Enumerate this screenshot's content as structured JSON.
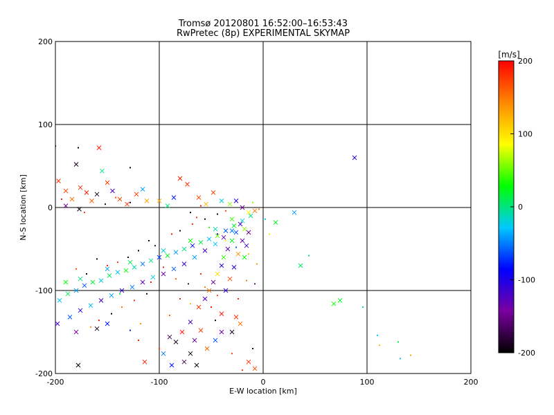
{
  "chart_data": {
    "type": "scatter",
    "title": "Tromsø 20120801 16:52:00–16:53:43",
    "subtitle": "RwPretec (8p) EXPERIMENTAL SKYMAP",
    "xlabel": "E-W location [km]",
    "ylabel": "N-S location [km]",
    "xlim": [
      -200,
      200
    ],
    "ylim": [
      -200,
      200
    ],
    "xticks": [
      "-200",
      "-100",
      "0",
      "100",
      "200"
    ],
    "yticks": [
      "-200",
      "-100",
      "0",
      "100",
      "200"
    ],
    "grid": true,
    "colorbar": {
      "label": "[m/s]",
      "range": [
        -200,
        200
      ],
      "ticks": [
        "-200",
        "-100",
        "0",
        "100",
        "200"
      ],
      "colormap": [
        "#000000",
        "#7a00a0",
        "#0000ff",
        "#00c8ff",
        "#00ff00",
        "#ffff00",
        "#ff8800",
        "#ff0000"
      ]
    },
    "points": [
      {
        "x": -197,
        "y": 32,
        "v": 180,
        "m": "x"
      },
      {
        "x": -190,
        "y": 20,
        "v": 170,
        "m": "x"
      },
      {
        "x": -184,
        "y": 10,
        "v": 150,
        "m": "x"
      },
      {
        "x": -176,
        "y": 24,
        "v": 180,
        "m": "x"
      },
      {
        "x": -170,
        "y": 18,
        "v": 190,
        "m": "x"
      },
      {
        "x": -165,
        "y": 8,
        "v": 160,
        "m": "x"
      },
      {
        "x": -158,
        "y": 72,
        "v": 190,
        "m": "x"
      },
      {
        "x": -155,
        "y": 44,
        "v": 0,
        "m": "x"
      },
      {
        "x": -150,
        "y": 30,
        "v": 180,
        "m": "x"
      },
      {
        "x": -145,
        "y": 20,
        "v": -120,
        "m": "x"
      },
      {
        "x": -138,
        "y": 10,
        "v": 170,
        "m": "x"
      },
      {
        "x": -131,
        "y": 4,
        "v": 180,
        "m": "x"
      },
      {
        "x": -122,
        "y": 16,
        "v": 180,
        "m": "x"
      },
      {
        "x": -116,
        "y": 22,
        "v": -40,
        "m": "x"
      },
      {
        "x": -112,
        "y": 8,
        "v": 130,
        "m": "x"
      },
      {
        "x": -180,
        "y": 52,
        "v": -190,
        "m": "x"
      },
      {
        "x": -190,
        "y": 2,
        "v": -150,
        "m": "x"
      },
      {
        "x": -177,
        "y": -2,
        "v": -200,
        "m": "x"
      },
      {
        "x": -160,
        "y": 16,
        "v": -190,
        "m": "x"
      },
      {
        "x": -80,
        "y": 35,
        "v": 190,
        "m": "x"
      },
      {
        "x": -73,
        "y": 28,
        "v": 180,
        "m": "x"
      },
      {
        "x": -62,
        "y": 12,
        "v": 170,
        "m": "x"
      },
      {
        "x": -55,
        "y": 4,
        "v": 120,
        "m": "x"
      },
      {
        "x": -48,
        "y": 18,
        "v": 170,
        "m": "x"
      },
      {
        "x": -40,
        "y": 8,
        "v": -20,
        "m": "x"
      },
      {
        "x": -32,
        "y": 4,
        "v": 60,
        "m": "x"
      },
      {
        "x": -26,
        "y": 8,
        "v": -100,
        "m": "x"
      },
      {
        "x": -20,
        "y": 0,
        "v": -150,
        "m": "x"
      },
      {
        "x": -14,
        "y": -6,
        "v": 90,
        "m": "x"
      },
      {
        "x": -8,
        "y": -4,
        "v": 150,
        "m": "x"
      },
      {
        "x": -92,
        "y": 2,
        "v": 0,
        "m": "x"
      },
      {
        "x": -86,
        "y": 12,
        "v": -80,
        "m": "x"
      },
      {
        "x": -100,
        "y": 8,
        "v": 120,
        "m": "x"
      },
      {
        "x": -196,
        "y": -112,
        "v": -30,
        "m": "x"
      },
      {
        "x": -188,
        "y": -104,
        "v": 10,
        "m": "x"
      },
      {
        "x": -180,
        "y": -100,
        "v": -40,
        "m": "x"
      },
      {
        "x": -172,
        "y": -94,
        "v": -60,
        "m": "x"
      },
      {
        "x": -164,
        "y": -90,
        "v": 20,
        "m": "x"
      },
      {
        "x": -156,
        "y": -88,
        "v": -20,
        "m": "x"
      },
      {
        "x": -148,
        "y": -82,
        "v": 10,
        "m": "x"
      },
      {
        "x": -140,
        "y": -78,
        "v": -30,
        "m": "x"
      },
      {
        "x": -132,
        "y": -76,
        "v": 30,
        "m": "x"
      },
      {
        "x": -124,
        "y": -72,
        "v": -10,
        "m": "x"
      },
      {
        "x": -116,
        "y": -68,
        "v": -50,
        "m": "x"
      },
      {
        "x": -108,
        "y": -64,
        "v": 0,
        "m": "x"
      },
      {
        "x": -100,
        "y": -60,
        "v": -70,
        "m": "x"
      },
      {
        "x": -92,
        "y": -58,
        "v": 20,
        "m": "x"
      },
      {
        "x": -84,
        "y": -54,
        "v": -40,
        "m": "x"
      },
      {
        "x": -76,
        "y": -50,
        "v": 0,
        "m": "x"
      },
      {
        "x": -68,
        "y": -46,
        "v": -80,
        "m": "x"
      },
      {
        "x": -60,
        "y": -42,
        "v": 10,
        "m": "x"
      },
      {
        "x": -52,
        "y": -38,
        "v": -30,
        "m": "x"
      },
      {
        "x": -44,
        "y": -34,
        "v": 50,
        "m": "x"
      },
      {
        "x": -36,
        "y": -28,
        "v": -60,
        "m": "x"
      },
      {
        "x": -28,
        "y": -22,
        "v": 20,
        "m": "x"
      },
      {
        "x": -20,
        "y": -16,
        "v": -20,
        "m": "x"
      },
      {
        "x": -12,
        "y": -10,
        "v": 0,
        "m": "x"
      },
      {
        "x": -190,
        "y": -90,
        "v": 30,
        "m": "x"
      },
      {
        "x": -176,
        "y": -86,
        "v": 0,
        "m": "x"
      },
      {
        "x": -150,
        "y": -74,
        "v": -40,
        "m": "x"
      },
      {
        "x": -128,
        "y": -66,
        "v": 10,
        "m": "x"
      },
      {
        "x": -96,
        "y": -52,
        "v": -20,
        "m": "x"
      },
      {
        "x": -70,
        "y": -40,
        "v": 30,
        "m": "x"
      },
      {
        "x": -46,
        "y": -26,
        "v": -10,
        "m": "x"
      },
      {
        "x": -30,
        "y": -14,
        "v": 40,
        "m": "x"
      },
      {
        "x": -198,
        "y": -140,
        "v": -120,
        "m": "x"
      },
      {
        "x": -186,
        "y": -132,
        "v": -60,
        "m": "x"
      },
      {
        "x": -176,
        "y": -124,
        "v": -100,
        "m": "x"
      },
      {
        "x": -166,
        "y": -118,
        "v": -30,
        "m": "x"
      },
      {
        "x": -156,
        "y": -112,
        "v": -120,
        "m": "x"
      },
      {
        "x": -146,
        "y": -106,
        "v": -40,
        "m": "x"
      },
      {
        "x": -136,
        "y": -100,
        "v": -110,
        "m": "x"
      },
      {
        "x": -126,
        "y": -96,
        "v": -50,
        "m": "x"
      },
      {
        "x": -116,
        "y": -90,
        "v": -130,
        "m": "x"
      },
      {
        "x": -106,
        "y": -84,
        "v": -20,
        "m": "x"
      },
      {
        "x": -96,
        "y": -80,
        "v": -140,
        "m": "x"
      },
      {
        "x": -86,
        "y": -74,
        "v": -60,
        "m": "x"
      },
      {
        "x": -76,
        "y": -68,
        "v": -110,
        "m": "x"
      },
      {
        "x": -66,
        "y": -60,
        "v": -40,
        "m": "x"
      },
      {
        "x": -56,
        "y": -52,
        "v": -120,
        "m": "x"
      },
      {
        "x": -46,
        "y": -44,
        "v": -30,
        "m": "x"
      },
      {
        "x": -38,
        "y": -36,
        "v": -130,
        "m": "x"
      },
      {
        "x": -30,
        "y": -28,
        "v": -50,
        "m": "x"
      },
      {
        "x": -180,
        "y": -150,
        "v": -140,
        "m": "x"
      },
      {
        "x": -160,
        "y": -146,
        "v": -190,
        "m": "x"
      },
      {
        "x": -150,
        "y": -140,
        "v": -80,
        "m": "x"
      },
      {
        "x": -22,
        "y": -20,
        "v": -120,
        "m": "x"
      },
      {
        "x": -26,
        "y": -30,
        "v": -60,
        "m": "x"
      },
      {
        "x": -30,
        "y": -40,
        "v": 20,
        "m": "x"
      },
      {
        "x": -34,
        "y": -50,
        "v": -130,
        "m": "x"
      },
      {
        "x": -38,
        "y": -60,
        "v": 40,
        "m": "x"
      },
      {
        "x": -40,
        "y": -70,
        "v": -110,
        "m": "x"
      },
      {
        "x": -44,
        "y": -80,
        "v": 100,
        "m": "x"
      },
      {
        "x": -48,
        "y": -90,
        "v": -140,
        "m": "x"
      },
      {
        "x": -52,
        "y": -100,
        "v": 150,
        "m": "x"
      },
      {
        "x": -56,
        "y": -110,
        "v": -120,
        "m": "x"
      },
      {
        "x": -18,
        "y": -26,
        "v": 60,
        "m": "x"
      },
      {
        "x": -20,
        "y": -40,
        "v": -130,
        "m": "x"
      },
      {
        "x": -24,
        "y": -56,
        "v": 140,
        "m": "x"
      },
      {
        "x": -28,
        "y": -72,
        "v": -100,
        "m": "x"
      },
      {
        "x": -32,
        "y": -86,
        "v": 170,
        "m": "x"
      },
      {
        "x": -36,
        "y": -100,
        "v": -110,
        "m": "x"
      },
      {
        "x": -14,
        "y": -30,
        "v": -150,
        "m": "x"
      },
      {
        "x": -16,
        "y": -46,
        "v": -120,
        "m": "x"
      },
      {
        "x": -18,
        "y": -60,
        "v": 30,
        "m": "x"
      },
      {
        "x": -62,
        "y": -120,
        "v": 180,
        "m": "x"
      },
      {
        "x": -70,
        "y": -138,
        "v": -120,
        "m": "x"
      },
      {
        "x": -78,
        "y": -150,
        "v": 190,
        "m": "x"
      },
      {
        "x": -84,
        "y": -162,
        "v": -190,
        "m": "x"
      },
      {
        "x": -60,
        "y": -148,
        "v": 170,
        "m": "x"
      },
      {
        "x": -66,
        "y": -160,
        "v": -150,
        "m": "x"
      },
      {
        "x": -70,
        "y": -176,
        "v": -190,
        "m": "x"
      },
      {
        "x": -76,
        "y": -186,
        "v": -170,
        "m": "x"
      },
      {
        "x": -64,
        "y": -190,
        "v": -190,
        "m": "x"
      },
      {
        "x": -54,
        "y": -170,
        "v": 160,
        "m": "x"
      },
      {
        "x": -46,
        "y": -160,
        "v": -60,
        "m": "x"
      },
      {
        "x": -40,
        "y": -150,
        "v": -130,
        "m": "x"
      },
      {
        "x": -26,
        "y": -132,
        "v": 180,
        "m": "x"
      },
      {
        "x": -22,
        "y": -140,
        "v": 150,
        "m": "x"
      },
      {
        "x": -30,
        "y": -150,
        "v": -190,
        "m": "x"
      },
      {
        "x": -40,
        "y": -128,
        "v": 190,
        "m": "x"
      },
      {
        "x": -90,
        "y": -156,
        "v": -170,
        "m": "x"
      },
      {
        "x": -96,
        "y": -176,
        "v": -50,
        "m": "x"
      },
      {
        "x": -88,
        "y": -190,
        "v": -80,
        "m": "x"
      },
      {
        "x": -14,
        "y": -186,
        "v": 180,
        "m": "x"
      },
      {
        "x": -8,
        "y": -194,
        "v": 170,
        "m": "x"
      },
      {
        "x": -114,
        "y": -186,
        "v": 190,
        "m": "x"
      },
      {
        "x": -178,
        "y": -190,
        "v": -200,
        "m": "x"
      },
      {
        "x": 88,
        "y": 60,
        "v": -110,
        "m": "x"
      },
      {
        "x": 12,
        "y": -18,
        "v": 20,
        "m": "x"
      },
      {
        "x": 36,
        "y": -70,
        "v": 10,
        "m": "x"
      },
      {
        "x": 68,
        "y": -116,
        "v": 30,
        "m": "x"
      },
      {
        "x": 74,
        "y": -112,
        "v": 20,
        "m": "x"
      },
      {
        "x": 30,
        "y": -6,
        "v": -40,
        "m": "x"
      },
      {
        "x": -60,
        "y": 2,
        "v": 190,
        "m": "."
      },
      {
        "x": -10,
        "y": 6,
        "v": 60,
        "m": "."
      },
      {
        "x": -4,
        "y": -2,
        "v": 150,
        "m": "."
      },
      {
        "x": -110,
        "y": -40,
        "v": -200,
        "m": "."
      },
      {
        "x": -104,
        "y": -46,
        "v": -180,
        "m": "."
      },
      {
        "x": -120,
        "y": -52,
        "v": -200,
        "m": "."
      },
      {
        "x": -130,
        "y": -60,
        "v": -190,
        "m": "."
      },
      {
        "x": -140,
        "y": -66,
        "v": 180,
        "m": "."
      },
      {
        "x": -150,
        "y": -70,
        "v": 190,
        "m": "."
      },
      {
        "x": -160,
        "y": -62,
        "v": -190,
        "m": "."
      },
      {
        "x": -170,
        "y": -80,
        "v": -200,
        "m": "."
      },
      {
        "x": -180,
        "y": -74,
        "v": 170,
        "m": "."
      },
      {
        "x": -88,
        "y": -32,
        "v": 190,
        "m": "."
      },
      {
        "x": -80,
        "y": -28,
        "v": -200,
        "m": "."
      },
      {
        "x": -68,
        "y": -20,
        "v": 180,
        "m": "."
      },
      {
        "x": -56,
        "y": -14,
        "v": -190,
        "m": "."
      },
      {
        "x": -44,
        "y": -8,
        "v": -190,
        "m": "."
      },
      {
        "x": -36,
        "y": -4,
        "v": 170,
        "m": "."
      },
      {
        "x": -96,
        "y": -72,
        "v": 190,
        "m": "."
      },
      {
        "x": -84,
        "y": -86,
        "v": 160,
        "m": "."
      },
      {
        "x": -72,
        "y": -92,
        "v": -170,
        "m": "."
      },
      {
        "x": -60,
        "y": -80,
        "v": 180,
        "m": "."
      },
      {
        "x": -108,
        "y": -90,
        "v": 190,
        "m": "."
      },
      {
        "x": -112,
        "y": -104,
        "v": -190,
        "m": "."
      },
      {
        "x": -124,
        "y": -112,
        "v": 180,
        "m": "."
      },
      {
        "x": -136,
        "y": -120,
        "v": 150,
        "m": "."
      },
      {
        "x": -146,
        "y": -128,
        "v": -200,
        "m": "."
      },
      {
        "x": -158,
        "y": -136,
        "v": 190,
        "m": "."
      },
      {
        "x": -166,
        "y": -144,
        "v": 140,
        "m": "."
      },
      {
        "x": -120,
        "y": -160,
        "v": 190,
        "m": "."
      },
      {
        "x": -100,
        "y": -170,
        "v": 180,
        "m": "."
      },
      {
        "x": -90,
        "y": -130,
        "v": 160,
        "m": "."
      },
      {
        "x": -50,
        "y": -120,
        "v": 190,
        "m": "."
      },
      {
        "x": -46,
        "y": -136,
        "v": -200,
        "m": "."
      },
      {
        "x": -30,
        "y": -176,
        "v": 170,
        "m": "."
      },
      {
        "x": -20,
        "y": -196,
        "v": 180,
        "m": "."
      },
      {
        "x": -10,
        "y": -170,
        "v": -190,
        "m": "."
      },
      {
        "x": -24,
        "y": -110,
        "v": 190,
        "m": "."
      },
      {
        "x": -200,
        "y": 74,
        "v": -200,
        "m": "."
      },
      {
        "x": -178,
        "y": 72,
        "v": -200,
        "m": "."
      },
      {
        "x": -128,
        "y": 48,
        "v": -200,
        "m": "."
      },
      {
        "x": -194,
        "y": 10,
        "v": 190,
        "m": "."
      },
      {
        "x": -172,
        "y": -6,
        "v": 180,
        "m": "."
      },
      {
        "x": -152,
        "y": 4,
        "v": -200,
        "m": "."
      },
      {
        "x": -142,
        "y": 12,
        "v": 170,
        "m": "."
      },
      {
        "x": -128,
        "y": 6,
        "v": -190,
        "m": "."
      },
      {
        "x": -70,
        "y": -6,
        "v": -200,
        "m": "."
      },
      {
        "x": -64,
        "y": -12,
        "v": 180,
        "m": "."
      },
      {
        "x": -52,
        "y": -24,
        "v": 40,
        "m": "."
      },
      {
        "x": -44,
        "y": -32,
        "v": -100,
        "m": "."
      },
      {
        "x": -36,
        "y": -40,
        "v": 90,
        "m": "."
      },
      {
        "x": -26,
        "y": -48,
        "v": -60,
        "m": "."
      },
      {
        "x": -14,
        "y": -56,
        "v": 120,
        "m": "."
      },
      {
        "x": -6,
        "y": -68,
        "v": 140,
        "m": "."
      },
      {
        "x": 2,
        "y": -14,
        "v": -20,
        "m": "."
      },
      {
        "x": 6,
        "y": -32,
        "v": 100,
        "m": "."
      },
      {
        "x": 44,
        "y": -58,
        "v": 0,
        "m": "."
      },
      {
        "x": 96,
        "y": -120,
        "v": 0,
        "m": "."
      },
      {
        "x": 110,
        "y": -154,
        "v": -30,
        "m": "."
      },
      {
        "x": 112,
        "y": -166,
        "v": 120,
        "m": "."
      },
      {
        "x": 130,
        "y": -162,
        "v": 10,
        "m": "."
      },
      {
        "x": 132,
        "y": -182,
        "v": -20,
        "m": "."
      },
      {
        "x": 142,
        "y": -178,
        "v": 130,
        "m": "."
      },
      {
        "x": -118,
        "y": -140,
        "v": 140,
        "m": "."
      },
      {
        "x": -128,
        "y": -148,
        "v": -80,
        "m": "."
      },
      {
        "x": -138,
        "y": -104,
        "v": 20,
        "m": "."
      },
      {
        "x": -80,
        "y": -110,
        "v": 190,
        "m": "."
      },
      {
        "x": -70,
        "y": -116,
        "v": 120,
        "m": "."
      },
      {
        "x": -56,
        "y": -96,
        "v": 150,
        "m": "."
      },
      {
        "x": -44,
        "y": -106,
        "v": 170,
        "m": "."
      },
      {
        "x": -16,
        "y": -88,
        "v": 150,
        "m": "."
      },
      {
        "x": -8,
        "y": -92,
        "v": -150,
        "m": "."
      }
    ]
  }
}
